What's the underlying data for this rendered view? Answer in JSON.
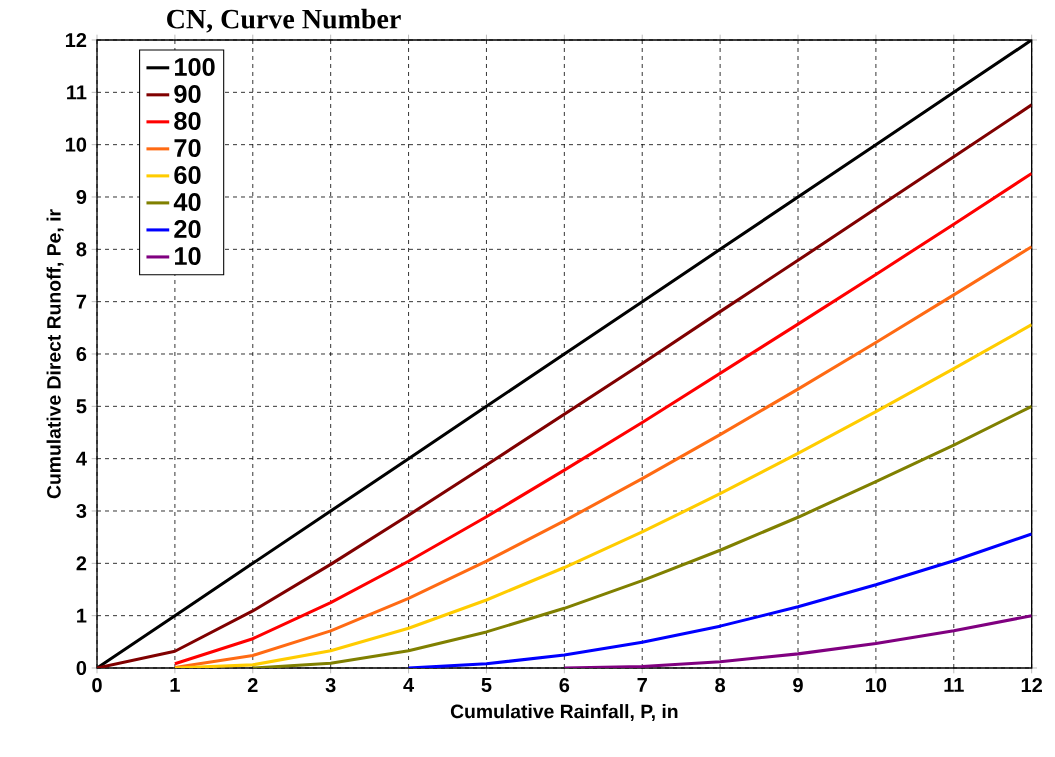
{
  "chart_data": {
    "type": "line",
    "legend_title": "CN, Curve Number",
    "xlabel": "Cumulative Rainfall, P, in",
    "ylabel": "Cumulative Direct Runoff, Pe, ir",
    "x": [
      0,
      1,
      2,
      3,
      4,
      5,
      6,
      7,
      8,
      9,
      10,
      11,
      12
    ],
    "series": [
      {
        "name": "100",
        "color": "#000000",
        "values": [
          0,
          1,
          2,
          3,
          4,
          5,
          6,
          7,
          8,
          9,
          10,
          11,
          12
        ]
      },
      {
        "name": "90",
        "color": "#800000",
        "values": [
          0,
          0.32,
          1.09,
          1.98,
          2.92,
          3.88,
          4.85,
          5.82,
          6.81,
          7.79,
          8.78,
          9.77,
          10.76
        ]
      },
      {
        "name": "80",
        "color": "#ff0000",
        "values": [
          null,
          0.08,
          0.56,
          1.25,
          2.04,
          2.89,
          3.78,
          4.69,
          5.63,
          6.57,
          7.52,
          8.48,
          9.45
        ]
      },
      {
        "name": "70",
        "color": "#ff6a13",
        "values": [
          null,
          0.01,
          0.24,
          0.71,
          1.33,
          2.04,
          2.81,
          3.62,
          4.46,
          5.33,
          6.22,
          7.13,
          8.05
        ]
      },
      {
        "name": "60",
        "color": "#ffcc00",
        "values": [
          null,
          0,
          0.06,
          0.33,
          0.76,
          1.3,
          1.92,
          2.6,
          3.33,
          4.1,
          4.9,
          5.72,
          6.56
        ]
      },
      {
        "name": "40",
        "color": "#808000",
        "values": [
          null,
          null,
          0,
          0.09,
          0.33,
          0.69,
          1.14,
          1.67,
          2.25,
          2.88,
          3.56,
          4.26,
          5.0
        ]
      },
      {
        "name": "20",
        "color": "#0000ff",
        "values": [
          null,
          null,
          null,
          null,
          0,
          0.08,
          0.25,
          0.49,
          0.8,
          1.17,
          1.59,
          2.05,
          2.56
        ]
      },
      {
        "name": "10",
        "color": "#800080",
        "values": [
          null,
          null,
          null,
          null,
          null,
          null,
          0,
          0.03,
          0.12,
          0.27,
          0.47,
          0.71,
          1.0
        ]
      }
    ],
    "xlim": [
      0,
      12
    ],
    "ylim": [
      0,
      12
    ],
    "xticks": [
      0,
      1,
      2,
      3,
      4,
      5,
      6,
      7,
      8,
      9,
      10,
      11,
      12
    ],
    "yticks": [
      0,
      1,
      2,
      3,
      4,
      5,
      6,
      7,
      8,
      9,
      10,
      11,
      12
    ],
    "grid": true,
    "legend": "top left",
    "marker": "none",
    "line_style": "solid"
  }
}
